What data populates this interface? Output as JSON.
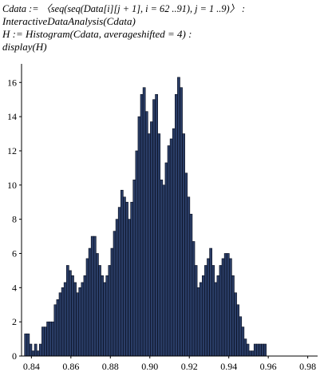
{
  "worksheet": {
    "input_lines": [
      "Cdata := 〈seq(seq(Data[i][j + 1], i = 62 ..91), j = 1 ..9)〉 :",
      "InteractiveDataAnalysis(Cdata)",
      "H := Histogram(Cdata, averageshifted = 4) :",
      "display(H)"
    ]
  },
  "colors": {
    "bar_fill": "#2a3d66",
    "bar_edge": "#050a1a",
    "background": "#ffffff"
  },
  "chart_data": {
    "type": "bar",
    "title": "",
    "xlabel": "",
    "ylabel": "",
    "xlim": [
      0.835,
      0.985
    ],
    "ylim": [
      0,
      16.9
    ],
    "grid": false,
    "legend": "none",
    "x_ticks": [
      0.84,
      0.86,
      0.88,
      0.9,
      0.92,
      0.94,
      0.96,
      0.98
    ],
    "x_tick_labels": [
      "0.84",
      "0.86",
      "0.88",
      "0.90",
      "0.92",
      "0.94",
      "0.96",
      "0.98"
    ],
    "y_ticks": [
      0,
      2,
      4,
      6,
      8,
      10,
      12,
      14,
      16
    ],
    "y_tick_labels": [
      "0",
      "2",
      "4",
      "6",
      "8",
      "10",
      "12",
      "14",
      "16"
    ],
    "bin_start": 0.8365,
    "bin_width": 0.00125,
    "values": [
      1.3,
      1.3,
      0.7,
      0.3,
      0.7,
      0.3,
      0.7,
      1.7,
      1.7,
      2.0,
      2.0,
      2.0,
      3.0,
      3.3,
      3.7,
      4.0,
      4.3,
      5.3,
      5.0,
      4.7,
      4.3,
      3.7,
      4.0,
      4.3,
      4.7,
      5.7,
      6.3,
      7.0,
      7.0,
      6.0,
      5.3,
      4.7,
      4.3,
      4.7,
      5.3,
      6.3,
      7.3,
      8.0,
      8.7,
      9.7,
      9.3,
      9.0,
      8.0,
      9.0,
      10.3,
      12.0,
      14.0,
      15.3,
      15.7,
      14.3,
      13.0,
      13.7,
      15.0,
      15.3,
      13.0,
      10.3,
      10.0,
      11.3,
      12.3,
      12.7,
      13.3,
      15.3,
      16.3,
      15.7,
      13.0,
      10.7,
      9.3,
      8.3,
      6.7,
      5.3,
      4.0,
      4.3,
      4.7,
      5.3,
      5.7,
      6.3,
      5.3,
      4.3,
      4.7,
      5.3,
      5.7,
      6.0,
      6.0,
      5.7,
      4.7,
      3.7,
      3.0,
      2.3,
      1.7,
      1.0,
      0.7,
      0.3,
      0.3,
      0.7,
      0.7,
      0.7,
      0.7,
      0.7
    ]
  }
}
